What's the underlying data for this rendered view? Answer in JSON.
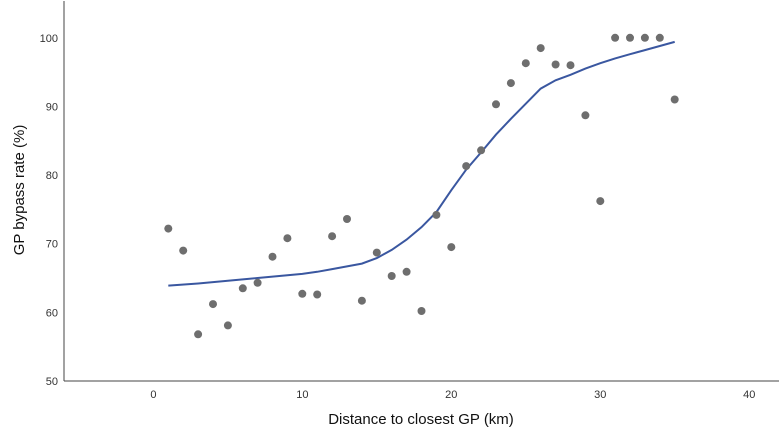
{
  "chart_data": {
    "type": "scatter",
    "xlabel": "Distance to closest GP (km)",
    "ylabel": "GP bypass rate (%)",
    "xlim": [
      -6,
      42
    ],
    "ylim": [
      50,
      105.5
    ],
    "xticks": [
      0,
      10,
      20,
      30,
      40
    ],
    "yticks": [
      50,
      60,
      70,
      80,
      90,
      100
    ],
    "grid": false,
    "colors": {
      "points": "#6e6e6e",
      "fit_line": "#3a57a0",
      "axis": "#444444"
    },
    "series": [
      {
        "kind": "points",
        "x": [
          1,
          2,
          3,
          4,
          5,
          6,
          7,
          8,
          9,
          10,
          11,
          12,
          13,
          14,
          15,
          16,
          17,
          18,
          19,
          20,
          21,
          22,
          23,
          24,
          25,
          26,
          27,
          28,
          29,
          30,
          31,
          32,
          33,
          34,
          35
        ],
        "y": [
          72.2,
          69.0,
          56.8,
          61.2,
          58.1,
          63.5,
          64.3,
          68.1,
          70.8,
          62.7,
          62.6,
          71.1,
          73.6,
          61.7,
          68.7,
          65.3,
          65.9,
          60.2,
          74.2,
          69.5,
          81.3,
          83.6,
          90.3,
          93.4,
          96.3,
          98.5,
          96.1,
          96.0,
          88.7,
          76.2,
          100.0,
          100.0,
          100.0,
          100.0,
          91.0
        ]
      },
      {
        "kind": "fit-line",
        "x": [
          1,
          3,
          5,
          7,
          9,
          10,
          11,
          12,
          13,
          14,
          15,
          16,
          17,
          18,
          19,
          20,
          21,
          22,
          23,
          24,
          25,
          26,
          27,
          28,
          29,
          30,
          31,
          32,
          33,
          34,
          35
        ],
        "y": [
          63.9,
          64.2,
          64.6,
          65.0,
          65.4,
          65.6,
          65.9,
          66.3,
          66.7,
          67.1,
          67.9,
          69.1,
          70.6,
          72.4,
          74.6,
          77.8,
          80.8,
          83.3,
          85.9,
          88.2,
          90.4,
          92.6,
          93.8,
          94.6,
          95.5,
          96.3,
          97.0,
          97.6,
          98.2,
          98.8,
          99.4
        ]
      }
    ]
  }
}
